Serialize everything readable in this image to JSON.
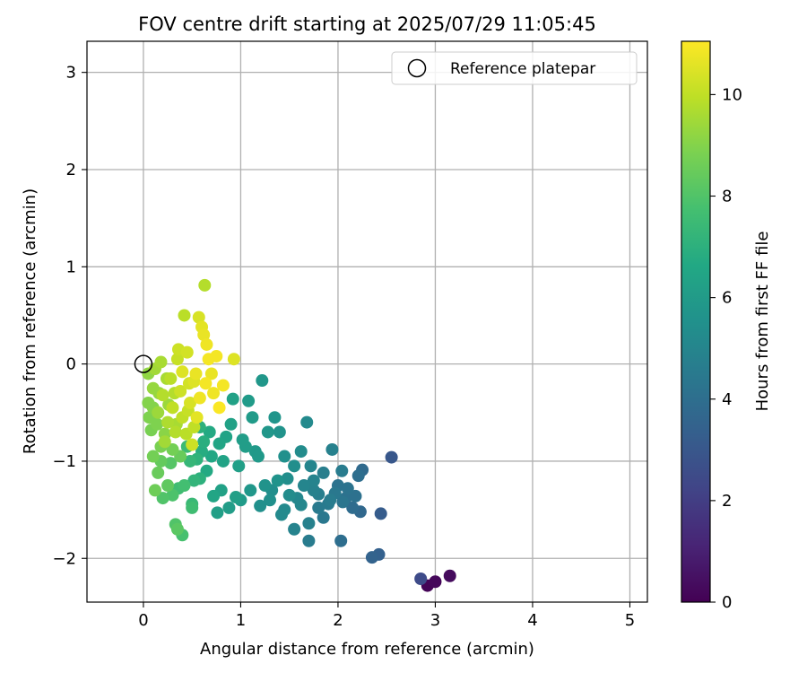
{
  "chart_data": {
    "type": "scatter",
    "title": "FOV centre drift starting at 2025/07/29 11:05:45",
    "xlabel": "Angular distance from reference (arcmin)",
    "ylabel": "Rotation from reference (arcmin)",
    "xlim": [
      -0.58,
      5.18
    ],
    "ylim": [
      -2.45,
      3.32
    ],
    "xticks": [
      0,
      1,
      2,
      3,
      4,
      5
    ],
    "yticks": [
      -2,
      -1,
      0,
      1,
      2,
      3
    ],
    "grid": true,
    "legend": {
      "position": "top-right",
      "entries": [
        {
          "label": "Reference platepar",
          "marker": "open-circle"
        }
      ]
    },
    "reference_point": {
      "x": 0,
      "y": 0
    },
    "colorbar": {
      "label": "Hours from first FF file",
      "colormap": "viridis",
      "range": [
        0,
        11.05
      ],
      "ticks": [
        0,
        2,
        4,
        6,
        8,
        10
      ]
    },
    "series": [
      {
        "points": [
          [
            2.92,
            -2.28,
            0.1
          ],
          [
            3.0,
            -2.24,
            0.2
          ],
          [
            3.15,
            -2.18,
            0.3
          ],
          [
            2.85,
            -2.21,
            2.5
          ],
          [
            2.55,
            -0.96,
            3.0
          ],
          [
            2.44,
            -1.54,
            3.2
          ],
          [
            2.42,
            -1.96,
            3.4
          ],
          [
            2.35,
            -1.99,
            3.5
          ],
          [
            2.23,
            -1.52,
            3.7
          ],
          [
            2.25,
            -1.09,
            3.8
          ],
          [
            2.21,
            -1.15,
            4.0
          ],
          [
            2.15,
            -1.48,
            3.9
          ],
          [
            2.08,
            -1.38,
            4.1
          ],
          [
            2.05,
            -1.42,
            4.3
          ],
          [
            2.03,
            -1.82,
            4.0
          ],
          [
            2.0,
            -1.25,
            4.2
          ],
          [
            1.97,
            -1.33,
            4.4
          ],
          [
            2.04,
            -1.1,
            4.6
          ],
          [
            1.94,
            -0.88,
            4.8
          ],
          [
            1.9,
            -1.44,
            4.5
          ],
          [
            1.85,
            -1.58,
            4.4
          ],
          [
            1.8,
            -1.34,
            4.7
          ],
          [
            1.75,
            -1.2,
            4.9
          ],
          [
            1.7,
            -1.82,
            4.6
          ],
          [
            1.7,
            -1.64,
            4.8
          ],
          [
            1.72,
            -1.05,
            5.0
          ],
          [
            1.68,
            -0.6,
            5.2
          ],
          [
            1.62,
            -1.45,
            5.1
          ],
          [
            1.55,
            -1.7,
            4.9
          ],
          [
            1.5,
            -1.35,
            5.3
          ],
          [
            1.48,
            -1.18,
            5.4
          ],
          [
            1.45,
            -1.5,
            5.2
          ],
          [
            1.4,
            -0.7,
            5.6
          ],
          [
            1.35,
            -0.55,
            5.7
          ],
          [
            1.3,
            -1.4,
            5.5
          ],
          [
            1.25,
            -1.25,
            5.6
          ],
          [
            1.22,
            -0.17,
            5.8
          ],
          [
            1.2,
            -1.46,
            5.5
          ],
          [
            1.15,
            -0.9,
            5.9
          ],
          [
            1.1,
            -1.3,
            5.8
          ],
          [
            1.08,
            -0.38,
            6.0
          ],
          [
            1.05,
            -0.85,
            6.1
          ],
          [
            1.0,
            -1.4,
            6.0
          ],
          [
            0.95,
            -1.37,
            6.2
          ],
          [
            0.92,
            -0.36,
            6.3
          ],
          [
            0.88,
            -1.48,
            6.1
          ],
          [
            0.85,
            -0.75,
            6.4
          ],
          [
            0.8,
            -1.3,
            6.3
          ],
          [
            0.76,
            -1.53,
            6.2
          ],
          [
            0.72,
            -1.36,
            6.5
          ],
          [
            0.7,
            -0.95,
            6.6
          ],
          [
            0.65,
            -1.1,
            6.7
          ],
          [
            0.6,
            -0.9,
            6.8
          ],
          [
            0.58,
            -1.18,
            7.0
          ],
          [
            0.55,
            -0.98,
            7.1
          ],
          [
            0.52,
            -1.2,
            7.2
          ],
          [
            0.5,
            -1.48,
            7.6
          ],
          [
            0.5,
            -1.44,
            7.4
          ],
          [
            0.48,
            -1.0,
            7.3
          ],
          [
            0.45,
            -0.85,
            7.5
          ],
          [
            0.42,
            -1.25,
            7.7
          ],
          [
            0.4,
            -1.76,
            7.8
          ],
          [
            0.36,
            -1.28,
            7.6
          ],
          [
            0.33,
            -1.65,
            8.0
          ],
          [
            0.35,
            -1.7,
            8.2
          ],
          [
            0.3,
            -1.35,
            7.9
          ],
          [
            0.28,
            -1.02,
            8.1
          ],
          [
            0.25,
            -1.25,
            8.3
          ],
          [
            0.2,
            -1.38,
            8.0
          ],
          [
            0.18,
            -1.0,
            8.4
          ],
          [
            0.15,
            -1.12,
            8.5
          ],
          [
            0.12,
            -1.3,
            8.6
          ],
          [
            0.1,
            -0.95,
            8.7
          ],
          [
            0.08,
            -0.68,
            8.8
          ],
          [
            0.06,
            -0.55,
            8.9
          ],
          [
            0.05,
            -0.4,
            9.0
          ],
          [
            0.05,
            -0.1,
            9.2
          ],
          [
            0.1,
            -0.25,
            9.3
          ],
          [
            0.12,
            -0.05,
            9.5
          ],
          [
            0.15,
            -0.5,
            9.4
          ],
          [
            0.18,
            0.02,
            9.6
          ],
          [
            0.2,
            -0.32,
            9.8
          ],
          [
            0.22,
            -0.8,
            9.5
          ],
          [
            0.25,
            -0.6,
            9.7
          ],
          [
            0.28,
            -0.15,
            9.9
          ],
          [
            0.3,
            -0.45,
            10.0
          ],
          [
            0.33,
            -0.7,
            9.8
          ],
          [
            0.35,
            0.05,
            10.1
          ],
          [
            0.38,
            -0.28,
            10.2
          ],
          [
            0.4,
            -0.55,
            10.0
          ],
          [
            0.42,
            0.5,
            9.9
          ],
          [
            0.45,
            0.12,
            10.3
          ],
          [
            0.48,
            -0.4,
            10.4
          ],
          [
            0.5,
            -0.83,
            10.2
          ],
          [
            0.52,
            -0.18,
            10.5
          ],
          [
            0.55,
            -0.55,
            10.6
          ],
          [
            0.57,
            0.48,
            10.4
          ],
          [
            0.6,
            0.38,
            10.6
          ],
          [
            0.62,
            0.3,
            10.7
          ],
          [
            0.63,
            0.81,
            9.8
          ],
          [
            0.65,
            0.2,
            10.8
          ],
          [
            0.67,
            0.05,
            10.9
          ],
          [
            0.7,
            -0.1,
            10.7
          ],
          [
            0.72,
            -0.3,
            10.8
          ],
          [
            0.75,
            0.08,
            10.9
          ],
          [
            0.78,
            -0.45,
            11.0
          ],
          [
            0.82,
            -0.22,
            10.9
          ],
          [
            0.93,
            0.05,
            10.5
          ],
          [
            1.45,
            -0.95,
            5.5
          ],
          [
            1.55,
            -1.05,
            5.4
          ],
          [
            1.62,
            -0.9,
            5.3
          ],
          [
            1.38,
            -1.2,
            5.6
          ],
          [
            1.28,
            -0.7,
            5.8
          ],
          [
            1.18,
            -0.95,
            5.9
          ],
          [
            1.12,
            -0.55,
            6.0
          ],
          [
            1.02,
            -0.78,
            6.1
          ],
          [
            0.98,
            -1.05,
            6.2
          ],
          [
            0.9,
            -0.62,
            6.3
          ],
          [
            0.82,
            -1.0,
            6.4
          ],
          [
            0.78,
            -0.82,
            6.5
          ],
          [
            0.68,
            -0.7,
            6.7
          ],
          [
            0.62,
            -0.8,
            6.9
          ],
          [
            0.58,
            -0.65,
            7.0
          ],
          [
            1.75,
            -1.3,
            4.8
          ],
          [
            1.85,
            -1.12,
            4.7
          ],
          [
            1.92,
            -1.4,
            4.6
          ],
          [
            1.8,
            -1.48,
            4.5
          ],
          [
            2.1,
            -1.28,
            4.2
          ],
          [
            2.18,
            -1.36,
            4.1
          ],
          [
            1.65,
            -1.25,
            5.0
          ],
          [
            1.58,
            -1.38,
            5.1
          ],
          [
            1.42,
            -1.55,
            5.2
          ],
          [
            1.32,
            -1.3,
            5.4
          ],
          [
            0.14,
            -0.62,
            8.9
          ],
          [
            0.22,
            -0.72,
            9.1
          ],
          [
            0.3,
            -0.88,
            8.7
          ],
          [
            0.38,
            -0.95,
            8.5
          ],
          [
            0.26,
            -0.42,
            9.4
          ],
          [
            0.34,
            -0.62,
            9.6
          ],
          [
            0.18,
            -0.85,
            8.8
          ],
          [
            0.44,
            -0.72,
            9.9
          ],
          [
            0.47,
            -0.2,
            10.3
          ],
          [
            0.4,
            -0.08,
            10.5
          ],
          [
            0.36,
            0.15,
            10.2
          ],
          [
            0.54,
            -0.1,
            10.7
          ],
          [
            0.58,
            -0.35,
            10.8
          ],
          [
            0.64,
            -0.2,
            10.9
          ],
          [
            0.1,
            -0.45,
            9.0
          ],
          [
            0.16,
            -0.3,
            9.3
          ],
          [
            0.24,
            -0.15,
            9.6
          ],
          [
            0.32,
            -0.3,
            9.8
          ],
          [
            0.46,
            -0.48,
            10.1
          ],
          [
            0.52,
            -0.65,
            10.0
          ]
        ]
      }
    ]
  }
}
